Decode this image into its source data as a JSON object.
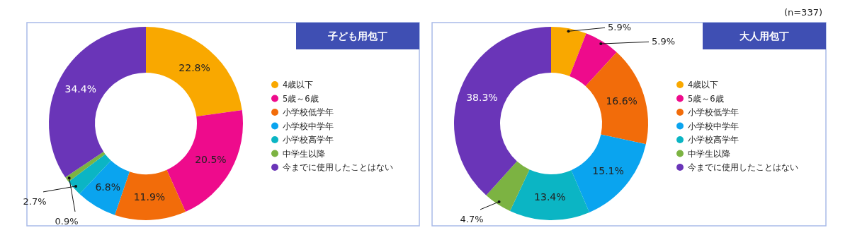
{
  "chart_data": [
    {
      "type": "donut",
      "title": "子ども用包丁",
      "legend": "right",
      "categories": [
        "4歳以下",
        "5歳～6歳",
        "小学校低学年",
        "小学校中学年",
        "小学校高学年",
        "中学生以降",
        "今までに使用したことはない"
      ],
      "values": [
        22.8,
        20.5,
        11.9,
        6.8,
        2.7,
        0.9,
        34.4
      ],
      "colors": [
        "#f9a800",
        "#ee0b8c",
        "#f26c0a",
        "#0aa4ef",
        "#0bb5c4",
        "#7cb342",
        "#6a35b8"
      ],
      "value_labels": [
        "22.8%",
        "20.5%",
        "11.9%",
        "6.8%",
        "2.7%",
        "0.9%",
        "34.4%"
      ]
    },
    {
      "type": "donut",
      "title": "大人用包丁",
      "legend": "right",
      "categories": [
        "4歳以下",
        "5歳～6歳",
        "小学校低学年",
        "小学校中学年",
        "小学校高学年",
        "中学生以降",
        "今までに使用したことはない"
      ],
      "values": [
        5.9,
        5.9,
        16.6,
        15.1,
        13.4,
        4.7,
        38.3
      ],
      "colors": [
        "#f9a800",
        "#ee0b8c",
        "#f26c0a",
        "#0aa4ef",
        "#0bb5c4",
        "#7cb342",
        "#6a35b8"
      ],
      "value_labels": [
        "5.9%",
        "5.9%",
        "16.6%",
        "15.1%",
        "13.4%",
        "4.7%",
        "38.3%"
      ],
      "annotations": [
        "(n=337)"
      ]
    }
  ]
}
